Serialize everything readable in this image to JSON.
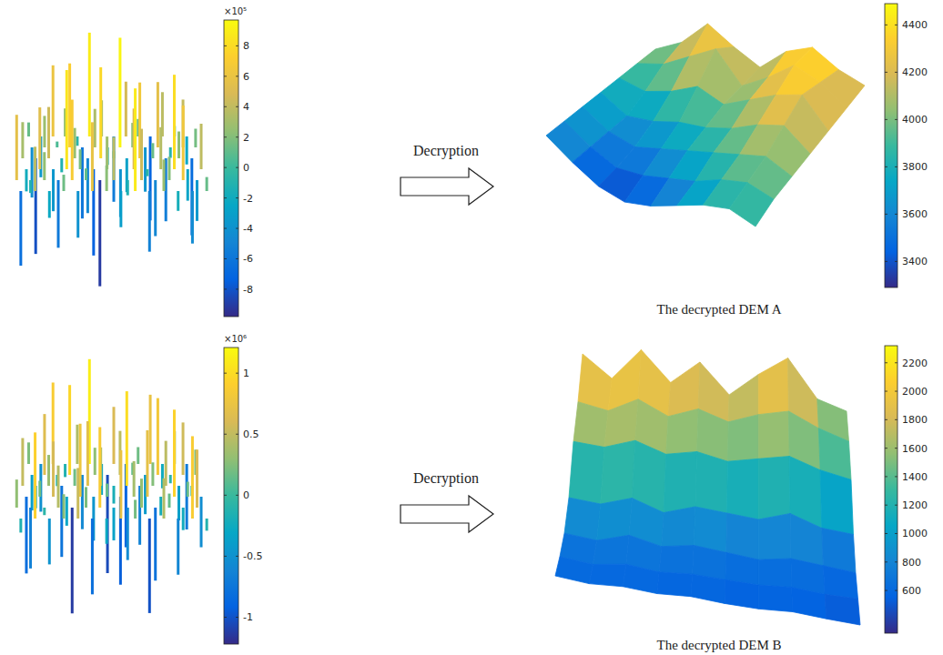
{
  "chart_data": [
    {
      "type": "stem3",
      "z": [
        [
          120000,
          -350000,
          610000,
          240000,
          -80000,
          890000,
          310000,
          -560000,
          470000,
          150000,
          -720000,
          380000,
          90000,
          -240000
        ],
        [
          -430000,
          270000,
          50000,
          720000,
          -610000,
          330000,
          -150000,
          940000,
          210000,
          -380000,
          560000,
          -90000,
          410000,
          160000
        ],
        [
          310000,
          -820000,
          440000,
          -120000,
          260000,
          -470000,
          780000,
          60000,
          -290000,
          650000,
          130000,
          -540000,
          230000,
          -660000
        ],
        [
          -190000,
          530000,
          -360000,
          850000,
          170000,
          -740000,
          280000,
          -410000,
          520000,
          -60000,
          360000,
          810000,
          -270000,
          390000
        ],
        [
          560000,
          -110000,
          240000,
          -580000,
          690000,
          100000,
          -910000,
          370000,
          -130000,
          440000,
          -480000,
          200000,
          640000,
          -350000
        ],
        [
          -640000,
          380000,
          -230000,
          140000,
          -400000,
          590000,
          220000,
          -310000,
          880000,
          -520000,
          270000,
          -170000,
          -450000,
          120000
        ]
      ],
      "colorbar_range": [
        -980000,
        970000
      ],
      "colorbar_ticks": [
        {
          "value": 800000,
          "label": "8"
        },
        {
          "value": 600000,
          "label": "6"
        },
        {
          "value": 400000,
          "label": "4"
        },
        {
          "value": 200000,
          "label": "2"
        },
        0,
        {
          "value": -200000,
          "label": "-2"
        },
        {
          "value": -400000,
          "label": "-4"
        },
        {
          "value": -600000,
          "label": "-6"
        },
        {
          "value": -800000,
          "label": "-8"
        }
      ],
      "colorbar_exponent": "×10⁵"
    },
    {
      "type": "surface",
      "title": "The decrypted DEM A",
      "annotation": "Decryption",
      "z": [
        [
          3950,
          4100,
          4380,
          4200,
          4050,
          4300,
          4420,
          4250,
          4150
        ],
        [
          3900,
          3980,
          4150,
          4320,
          4000,
          4180,
          4400,
          4300,
          4100
        ],
        [
          3850,
          3800,
          3900,
          4050,
          3950,
          4100,
          4250,
          4350,
          4050
        ],
        [
          3800,
          3650,
          3700,
          3800,
          3850,
          3950,
          4100,
          4200,
          4000
        ],
        [
          3750,
          3600,
          3550,
          3650,
          3750,
          3850,
          3950,
          4050,
          3950
        ],
        [
          3700,
          3550,
          3450,
          3500,
          3600,
          3700,
          3850,
          3950,
          3900
        ],
        [
          3650,
          3500,
          3380,
          3350,
          3450,
          3600,
          3750,
          3850,
          3800
        ]
      ],
      "colorbar_range": [
        3290,
        4490
      ],
      "colorbar_ticks": [
        4400,
        4200,
        4000,
        3800,
        3600,
        3400
      ]
    },
    {
      "type": "stem3",
      "z": [
        [
          230000,
          -510000,
          870000,
          -140000,
          420000,
          1120000,
          -330000,
          610000,
          -890000,
          180000,
          740000,
          -260000,
          350000,
          -700000
        ],
        [
          -380000,
          650000,
          -120000,
          960000,
          -580000,
          290000,
          -1050000,
          470000,
          130000,
          -420000,
          820000,
          -90000,
          560000,
          270000
        ],
        [
          510000,
          -240000,
          330000,
          -760000,
          180000,
          690000,
          410000,
          -190000,
          1010000,
          -630000,
          250000,
          480000,
          -370000,
          -110000
        ],
        [
          -820000,
          170000,
          590000,
          -310000,
          780000,
          -470000,
          140000,
          -940000,
          380000,
          710000,
          -200000,
          930000,
          160000,
          -540000
        ],
        [
          300000,
          -650000,
          -80000,
          450000,
          -1130000,
          220000,
          860000,
          -350000,
          -560000,
          310000,
          -780000,
          150000,
          -240000,
          620000
        ],
        [
          -150000,
          920000,
          -490000,
          260000,
          540000,
          -810000,
          -270000,
          730000,
          200000,
          -1010000,
          430000,
          -600000,
          880000,
          -130000
        ]
      ],
      "colorbar_range": [
        -1220000,
        1210000
      ],
      "colorbar_ticks": [
        {
          "value": 1000000,
          "label": "1"
        },
        {
          "value": 500000,
          "label": "0.5"
        },
        0,
        {
          "value": -500000,
          "label": "-0.5"
        },
        {
          "value": -1000000,
          "label": "-1"
        }
      ],
      "colorbar_exponent": "×10⁶"
    },
    {
      "type": "surface",
      "title": "The decrypted DEM B",
      "annotation": "Decryption",
      "z": [
        [
          2200,
          1900,
          2250,
          1850,
          2100,
          1700,
          1950,
          2150,
          1650,
          1500
        ],
        [
          1800,
          1700,
          1850,
          1650,
          1750,
          1600,
          1700,
          1750,
          1550,
          1400
        ],
        [
          1500,
          1450,
          1550,
          1400,
          1450,
          1350,
          1400,
          1450,
          1300,
          1200
        ],
        [
          1000,
          950,
          1050,
          900,
          1000,
          950,
          900,
          1000,
          850,
          800
        ],
        [
          750,
          700,
          800,
          700,
          750,
          700,
          650,
          700,
          650,
          600
        ],
        [
          650,
          600,
          650,
          600,
          620,
          600,
          580,
          600,
          560,
          550
        ],
        [
          600,
          560,
          580,
          550,
          570,
          540,
          530,
          550,
          520,
          500
        ]
      ],
      "colorbar_range": [
        300,
        2320
      ],
      "colorbar_ticks": [
        2200,
        2000,
        1800,
        1600,
        1400,
        1200,
        1000,
        800,
        600
      ]
    }
  ]
}
